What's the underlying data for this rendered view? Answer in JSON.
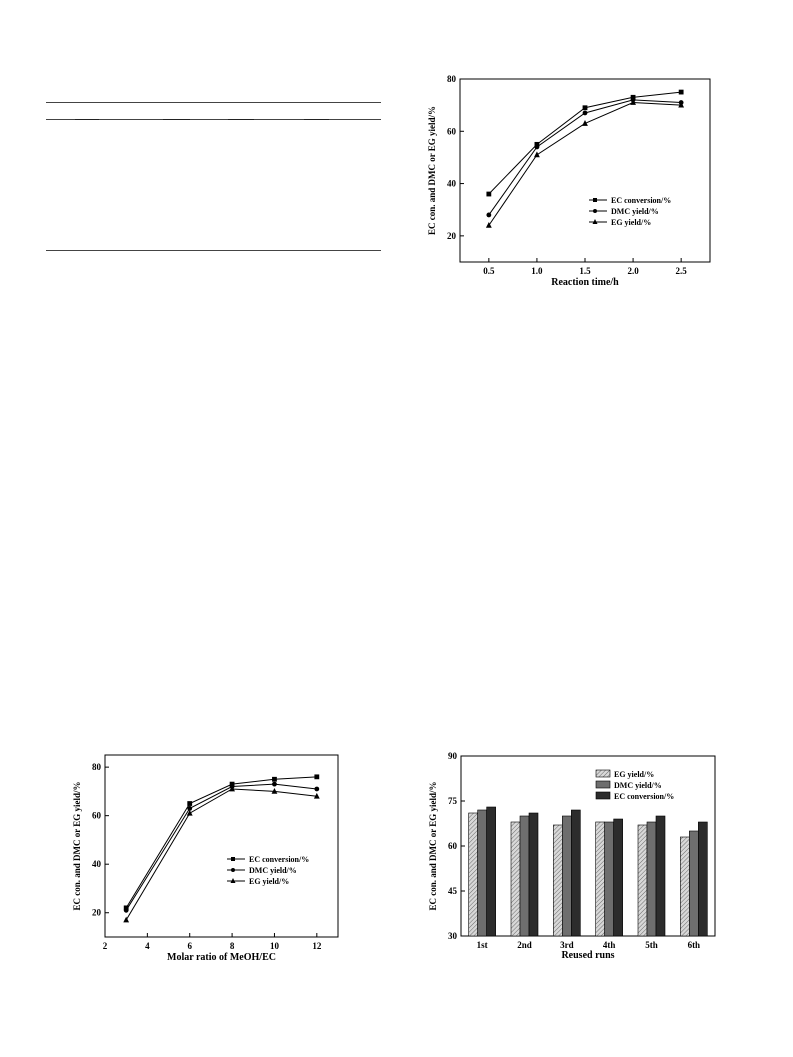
{
  "chart_data": [
    {
      "id": "time",
      "type": "line",
      "xlabel": "Reaction time/h",
      "ylabel": "EC con. and DMC  or EG yield/%",
      "xlim": [
        0.2,
        2.8
      ],
      "ylim": [
        10,
        80
      ],
      "xticks": [
        0.5,
        1.0,
        1.5,
        2.0,
        2.5
      ],
      "xtick_labels": [
        "0.5",
        "1.0",
        "1.5",
        "2.0",
        "2.5"
      ],
      "yticks": [
        20,
        40,
        60,
        80
      ],
      "ytick_labels": [
        "20",
        "40",
        "60",
        "80"
      ],
      "x": [
        0.5,
        1.0,
        1.5,
        2.0,
        2.5
      ],
      "legend_position": "lower-right",
      "series": [
        {
          "name": "EC conversion/%",
          "marker": "square",
          "values": [
            36,
            55,
            69,
            73,
            75
          ]
        },
        {
          "name": "DMC yield/%",
          "marker": "circle",
          "values": [
            28,
            54,
            67,
            72,
            71
          ]
        },
        {
          "name": "EG yield/%",
          "marker": "triangle",
          "values": [
            24,
            51,
            63,
            71,
            70
          ]
        }
      ]
    },
    {
      "id": "ratio",
      "type": "line",
      "xlabel": "Molar ratio of MeOH/EC",
      "ylabel": "EC con. and DMC or EG yield/%",
      "xlim": [
        2,
        13
      ],
      "ylim": [
        10,
        85
      ],
      "xticks": [
        2,
        4,
        6,
        8,
        10,
        12
      ],
      "xtick_labels": [
        "2",
        "4",
        "6",
        "8",
        "10",
        "12"
      ],
      "yticks": [
        20,
        40,
        60,
        80
      ],
      "ytick_labels": [
        "20",
        "40",
        "60",
        "80"
      ],
      "x": [
        3,
        6,
        8,
        10,
        12
      ],
      "legend_position": "lower-right",
      "series": [
        {
          "name": "EC conversion/%",
          "marker": "square",
          "values": [
            22,
            65,
            73,
            75,
            76
          ]
        },
        {
          "name": "DMC yield/%",
          "marker": "circle",
          "values": [
            21,
            63,
            72,
            73,
            71
          ]
        },
        {
          "name": "EG yield/%",
          "marker": "triangle",
          "values": [
            17,
            61,
            71,
            70,
            68
          ]
        }
      ]
    },
    {
      "id": "reuse",
      "type": "bar",
      "xlabel": "Reused runs",
      "ylabel": "EC con. and DMC or EG yield/%",
      "ylim": [
        30,
        90
      ],
      "yticks": [
        30,
        45,
        60,
        75,
        90
      ],
      "ytick_labels": [
        "30",
        "45",
        "60",
        "75",
        "90"
      ],
      "categories": [
        "1st",
        "2nd",
        "3rd",
        "4th",
        "5th",
        "6th"
      ],
      "legend_position": "top-right",
      "series": [
        {
          "name": "EG yield/%",
          "color": "#b8b8b8",
          "values": [
            71,
            68,
            67,
            68,
            67,
            63
          ]
        },
        {
          "name": "DMC yield/%",
          "color": "#6e6e6e",
          "values": [
            72,
            70,
            70,
            68,
            68,
            65
          ]
        },
        {
          "name": "EC conversion/%",
          "color": "#2c2c2c",
          "values": [
            73,
            71,
            72,
            69,
            70,
            68
          ]
        }
      ]
    }
  ]
}
